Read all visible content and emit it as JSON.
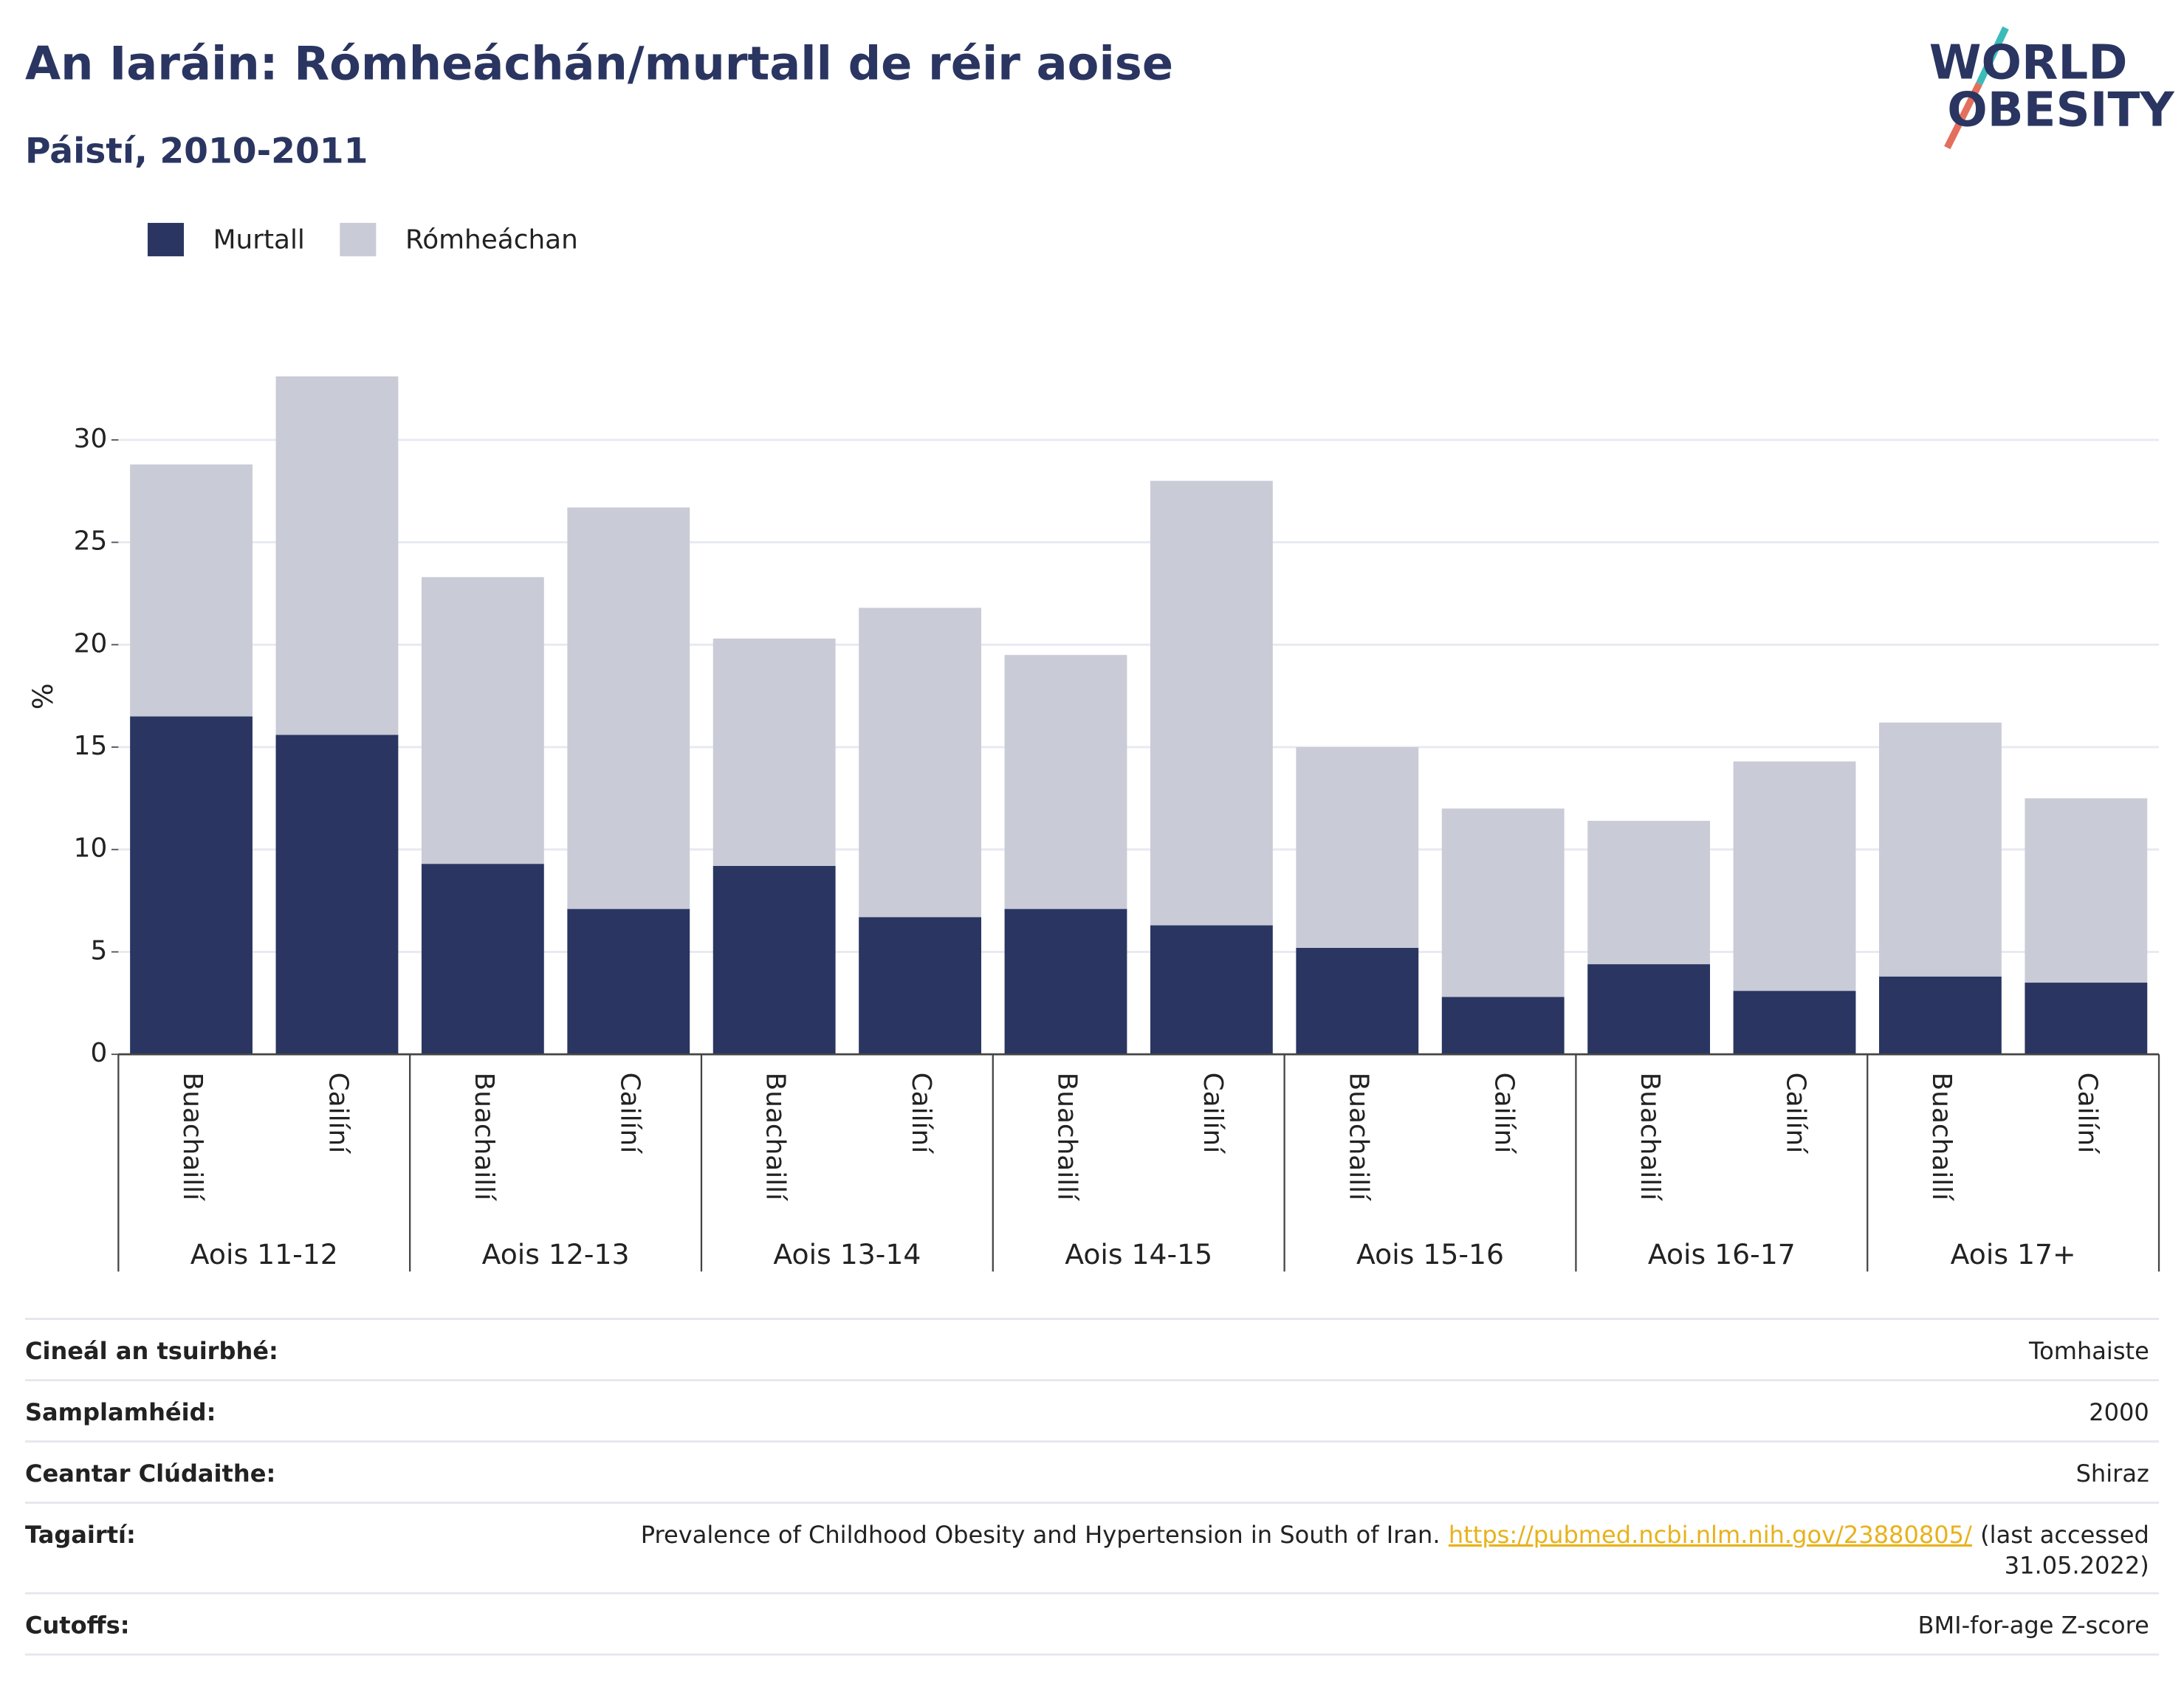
{
  "chart_data": {
    "type": "stacked_bar",
    "title": "An Iaráin: Rómheáchán/murtall de réir aoise",
    "subtitle": "Páistí, 2010-2011",
    "logo": [
      "WORLD",
      "OBESITY"
    ],
    "y_label": "%",
    "groups": [
      "Aois 11-12",
      "Aois 12-13",
      "Aois 13-14",
      "Aois 14-15",
      "Aois 15-16",
      "Aois 16-17",
      "Aois 17+"
    ],
    "categories": [
      "Buachaillí",
      "Cailíní",
      "Buachaillí",
      "Cailíní",
      "Buachaillí",
      "Cailíní",
      "Buachaillí",
      "Cailíní",
      "Buachaillí",
      "Cailíní",
      "Buachaillí",
      "Cailíní",
      "Buachaillí",
      "Cailíní"
    ],
    "series": [
      {
        "name": "Murtall",
        "color": "#2a3561",
        "values": [
          16.5,
          15.6,
          9.3,
          7.1,
          9.2,
          6.7,
          7.1,
          6.3,
          5.2,
          2.8,
          4.4,
          3.1,
          3.8,
          3.5
        ]
      },
      {
        "name": "Rómheáchan",
        "color": "#c9cbd7",
        "values": [
          12.3,
          17.5,
          14.0,
          19.6,
          11.1,
          15.1,
          12.4,
          21.7,
          9.8,
          9.2,
          7.0,
          11.2,
          12.4,
          9.0
        ]
      }
    ],
    "ylim": [
      0,
      34
    ],
    "yticks": [
      0,
      5,
      10,
      15,
      20,
      25,
      30
    ],
    "grid": true,
    "legend": "top-left"
  },
  "table": {
    "rows": [
      [
        "Cineál an tsuirbhé:",
        "Tomhaiste"
      ],
      [
        "Samplamhéid:",
        "2000"
      ],
      [
        "Ceantar Clúdaithe:",
        "Shiraz"
      ],
      [
        "Tagairtí:",
        {
          "text": "Prevalence of Childhood Obesity and Hypertension in South of Iran.",
          "link": "https://pubmed.ncbi.nlm.nih.gov/23880805/",
          "note": [
            "(last accessed",
            "31.05.2022)"
          ]
        }
      ],
      [
        "Cutoffs:",
        "BMI-for-age Z-score"
      ]
    ]
  }
}
